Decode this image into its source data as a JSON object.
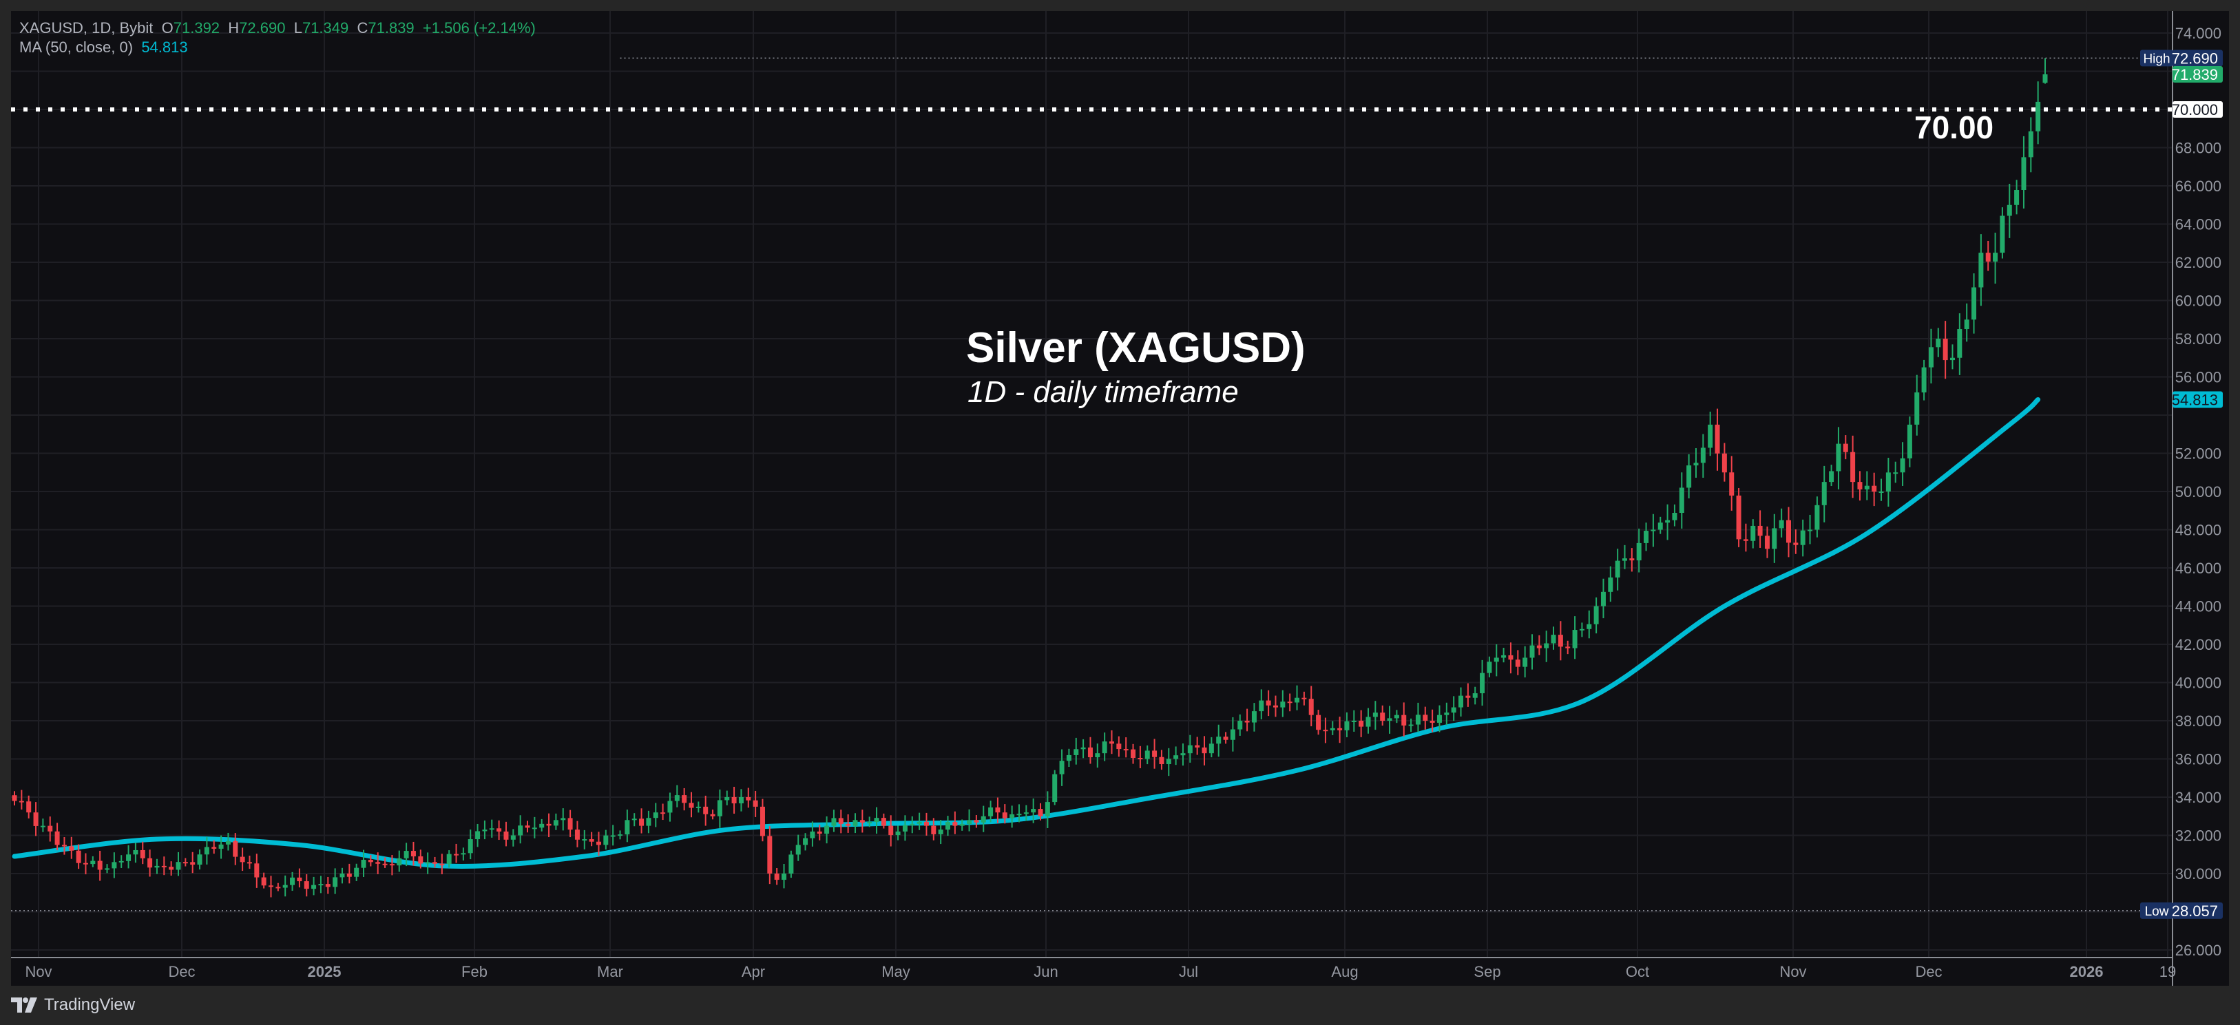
{
  "legend": {
    "symbol": "XAGUSD, 1D, Bybit",
    "o_label": "O",
    "o": "71.392",
    "h_label": "H",
    "h": "72.690",
    "l_label": "L",
    "l": "71.349",
    "c_label": "C",
    "c": "71.839",
    "change": "+1.506 (+2.14%)",
    "ma_label": "MA (50, close, 0)",
    "ma_value": "54.813"
  },
  "annotations": {
    "title": "Silver (XAGUSD)",
    "subtitle": "1D - daily timeframe",
    "level_label": "70.00"
  },
  "footer": {
    "brand": "TradingView"
  },
  "colors": {
    "up": "#22ab6a",
    "down": "#f0424a",
    "ma": "#00bcd4",
    "background": "#0f0f13",
    "high_low_label": "#1a3163"
  },
  "chart_data": {
    "type": "candlestick",
    "symbol": "XAGUSD",
    "timeframe": "1D",
    "x_ticks": [
      "Nov",
      "Dec",
      "2025",
      "Feb",
      "Mar",
      "Apr",
      "May",
      "Jun",
      "Jul",
      "Aug",
      "Sep",
      "Oct",
      "Nov",
      "Dec",
      "2026",
      "19"
    ],
    "y_ticks": [
      "74.000",
      "68.000",
      "66.000",
      "64.000",
      "62.000",
      "60.000",
      "58.000",
      "56.000",
      "52.000",
      "50.000",
      "48.000",
      "46.000",
      "44.000",
      "42.000",
      "40.000",
      "38.000",
      "36.000",
      "34.000",
      "32.000",
      "30.000",
      "26.000"
    ],
    "ylim": [
      25.5,
      74.5
    ],
    "grid": true,
    "closes": [
      33.8,
      33.2,
      32.5,
      31.5,
      31.2,
      30.5,
      30.2,
      30.6,
      31.0,
      30.8,
      30.4,
      30.2,
      30.6,
      31.0,
      31.3,
      31.7,
      30.6,
      29.8,
      29.3,
      29.4,
      29.6,
      29.4,
      29.3,
      30.0,
      30.3,
      30.6,
      30.5,
      30.8,
      30.9,
      30.6,
      30.5,
      31.0,
      31.8,
      32.3,
      32.2,
      32.0,
      32.4,
      32.6,
      32.8,
      32.3,
      31.8,
      31.5,
      32.0,
      32.8,
      32.5,
      33.2,
      33.8,
      33.7,
      33.5,
      33.0,
      34.0,
      34.0,
      33.5,
      30.0,
      30.0,
      31.5,
      32.2,
      32.5,
      32.6,
      32.8,
      32.7,
      32.5,
      32.2,
      32.6,
      32.5,
      32.3,
      32.5,
      32.8,
      33.0,
      33.2,
      33.1,
      33.2,
      33.0,
      35.2,
      36.2,
      36.6,
      36.3,
      36.8,
      36.5,
      36.0,
      36.1,
      36.0,
      36.3,
      36.6,
      36.8,
      37.0,
      38.0,
      38.5,
      38.8,
      39.0,
      39.2,
      38.3,
      37.5,
      37.5,
      38.0,
      38.2,
      38.0,
      38.3,
      37.8,
      38.0,
      38.3,
      38.7,
      39.2,
      40.5,
      41.3,
      41.2,
      41.3,
      41.8,
      42.5,
      41.8,
      42.8,
      44.0,
      45.5,
      46.5,
      47.3,
      48.0,
      48.5,
      50.2,
      51.5,
      53.5,
      51.0,
      47.5,
      48.2,
      47.0,
      48.5,
      47.2,
      48.0,
      50.5,
      52.5,
      50.5,
      50.3,
      50.0,
      51.0,
      53.5,
      56.5,
      58.0,
      57.0,
      59.0,
      62.5,
      62.5,
      65.0,
      67.5,
      70.4
    ],
    "last_candle": {
      "open": 71.392,
      "high": 72.69,
      "low": 71.349,
      "close": 71.839
    },
    "ma_series": {
      "name": "MA (50, close, 0)",
      "values": [
        30.9,
        31.8,
        31.5,
        30.4,
        30.9,
        32.3,
        32.6,
        32.8,
        34.0,
        35.4,
        37.6,
        39.0,
        44.0,
        47.8,
        53.5,
        54.813
      ]
    },
    "reference_line": {
      "value": 70.0,
      "label": "70.000",
      "style": "dotted"
    },
    "high": {
      "label": "High",
      "value": "72.690"
    },
    "low": {
      "label": "Low",
      "value": "28.057"
    },
    "last_price": "71.839",
    "ma_last": "54.813"
  }
}
